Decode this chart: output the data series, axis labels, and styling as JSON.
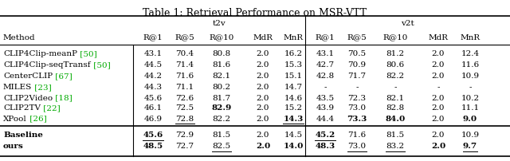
{
  "title": "Table 1: Retrieval Performance on MSR-VTT",
  "sub_headers": [
    "R@1",
    "R@5",
    "R@10",
    "MdR",
    "MnR"
  ],
  "rows": [
    {
      "method": "CLIP4Clip-meanP",
      "ref": "[50]",
      "t2v": [
        "43.1",
        "70.4",
        "80.8",
        "2.0",
        "16.2"
      ],
      "v2t": [
        "43.1",
        "70.5",
        "81.2",
        "2.0",
        "12.4"
      ]
    },
    {
      "method": "CLIP4Clip-seqTransf",
      "ref": "[50]",
      "t2v": [
        "44.5",
        "71.4",
        "81.6",
        "2.0",
        "15.3"
      ],
      "v2t": [
        "42.7",
        "70.9",
        "80.6",
        "2.0",
        "11.6"
      ]
    },
    {
      "method": "CenterCLIP",
      "ref": "[67]",
      "t2v": [
        "44.2",
        "71.6",
        "82.1",
        "2.0",
        "15.1"
      ],
      "v2t": [
        "42.8",
        "71.7",
        "82.2",
        "2.0",
        "10.9"
      ]
    },
    {
      "method": "MILES",
      "ref": "[23]",
      "t2v": [
        "44.3",
        "71.1",
        "80.2",
        "2.0",
        "14.7"
      ],
      "v2t": [
        "-",
        "-",
        "-",
        "-",
        "-"
      ]
    },
    {
      "method": "CLIP2Video",
      "ref": "[18]",
      "t2v": [
        "45.6",
        "72.6",
        "81.7",
        "2.0",
        "14.6"
      ],
      "v2t": [
        "43.5",
        "72.3",
        "82.1",
        "2.0",
        "10.2"
      ]
    },
    {
      "method": "CLIP2TV",
      "ref": "[22]",
      "t2v": [
        "46.1",
        "72.5",
        "82.9",
        "2.0",
        "15.2"
      ],
      "v2t": [
        "43.9",
        "73.0",
        "82.8",
        "2.0",
        "11.1"
      ]
    },
    {
      "method": "XPool",
      "ref": "[26]",
      "t2v": [
        "46.9",
        "72.8",
        "82.2",
        "2.0",
        "14.3"
      ],
      "v2t": [
        "44.4",
        "73.3",
        "84.0",
        "2.0",
        "9.0"
      ]
    }
  ],
  "bottom_rows": [
    {
      "method": "Baseline",
      "ref": "",
      "t2v": [
        "45.6",
        "72.9",
        "81.5",
        "2.0",
        "14.5"
      ],
      "v2t": [
        "45.2",
        "71.6",
        "81.5",
        "2.0",
        "10.9"
      ]
    },
    {
      "method": "ours",
      "ref": "",
      "t2v": [
        "48.5",
        "72.7",
        "82.5",
        "2.0",
        "14.0"
      ],
      "v2t": [
        "48.3",
        "73.0",
        "83.2",
        "2.0",
        "9.7"
      ]
    }
  ],
  "bold": {
    "CLIP2TV_t2v": [
      2
    ],
    "XPool_t2v": [
      4
    ],
    "XPool_v2t": [
      1,
      2,
      4
    ],
    "Baseline_t2v": [
      0
    ],
    "Baseline_v2t": [
      0
    ],
    "ours_t2v": [
      0,
      3,
      4
    ],
    "ours_v2t": [
      0,
      3,
      4
    ]
  },
  "underline": {
    "XPool_t2v": [
      1,
      4
    ],
    "Baseline_t2v": [
      0
    ],
    "Baseline_v2t": [
      0
    ],
    "ours_t2v": [
      2
    ],
    "ours_v2t": [
      1,
      2,
      4
    ]
  },
  "ref_color": "#00aa00",
  "text_color": "#000000",
  "bg_color": "#ffffff",
  "title_fontsize": 9,
  "body_fontsize": 7.5
}
